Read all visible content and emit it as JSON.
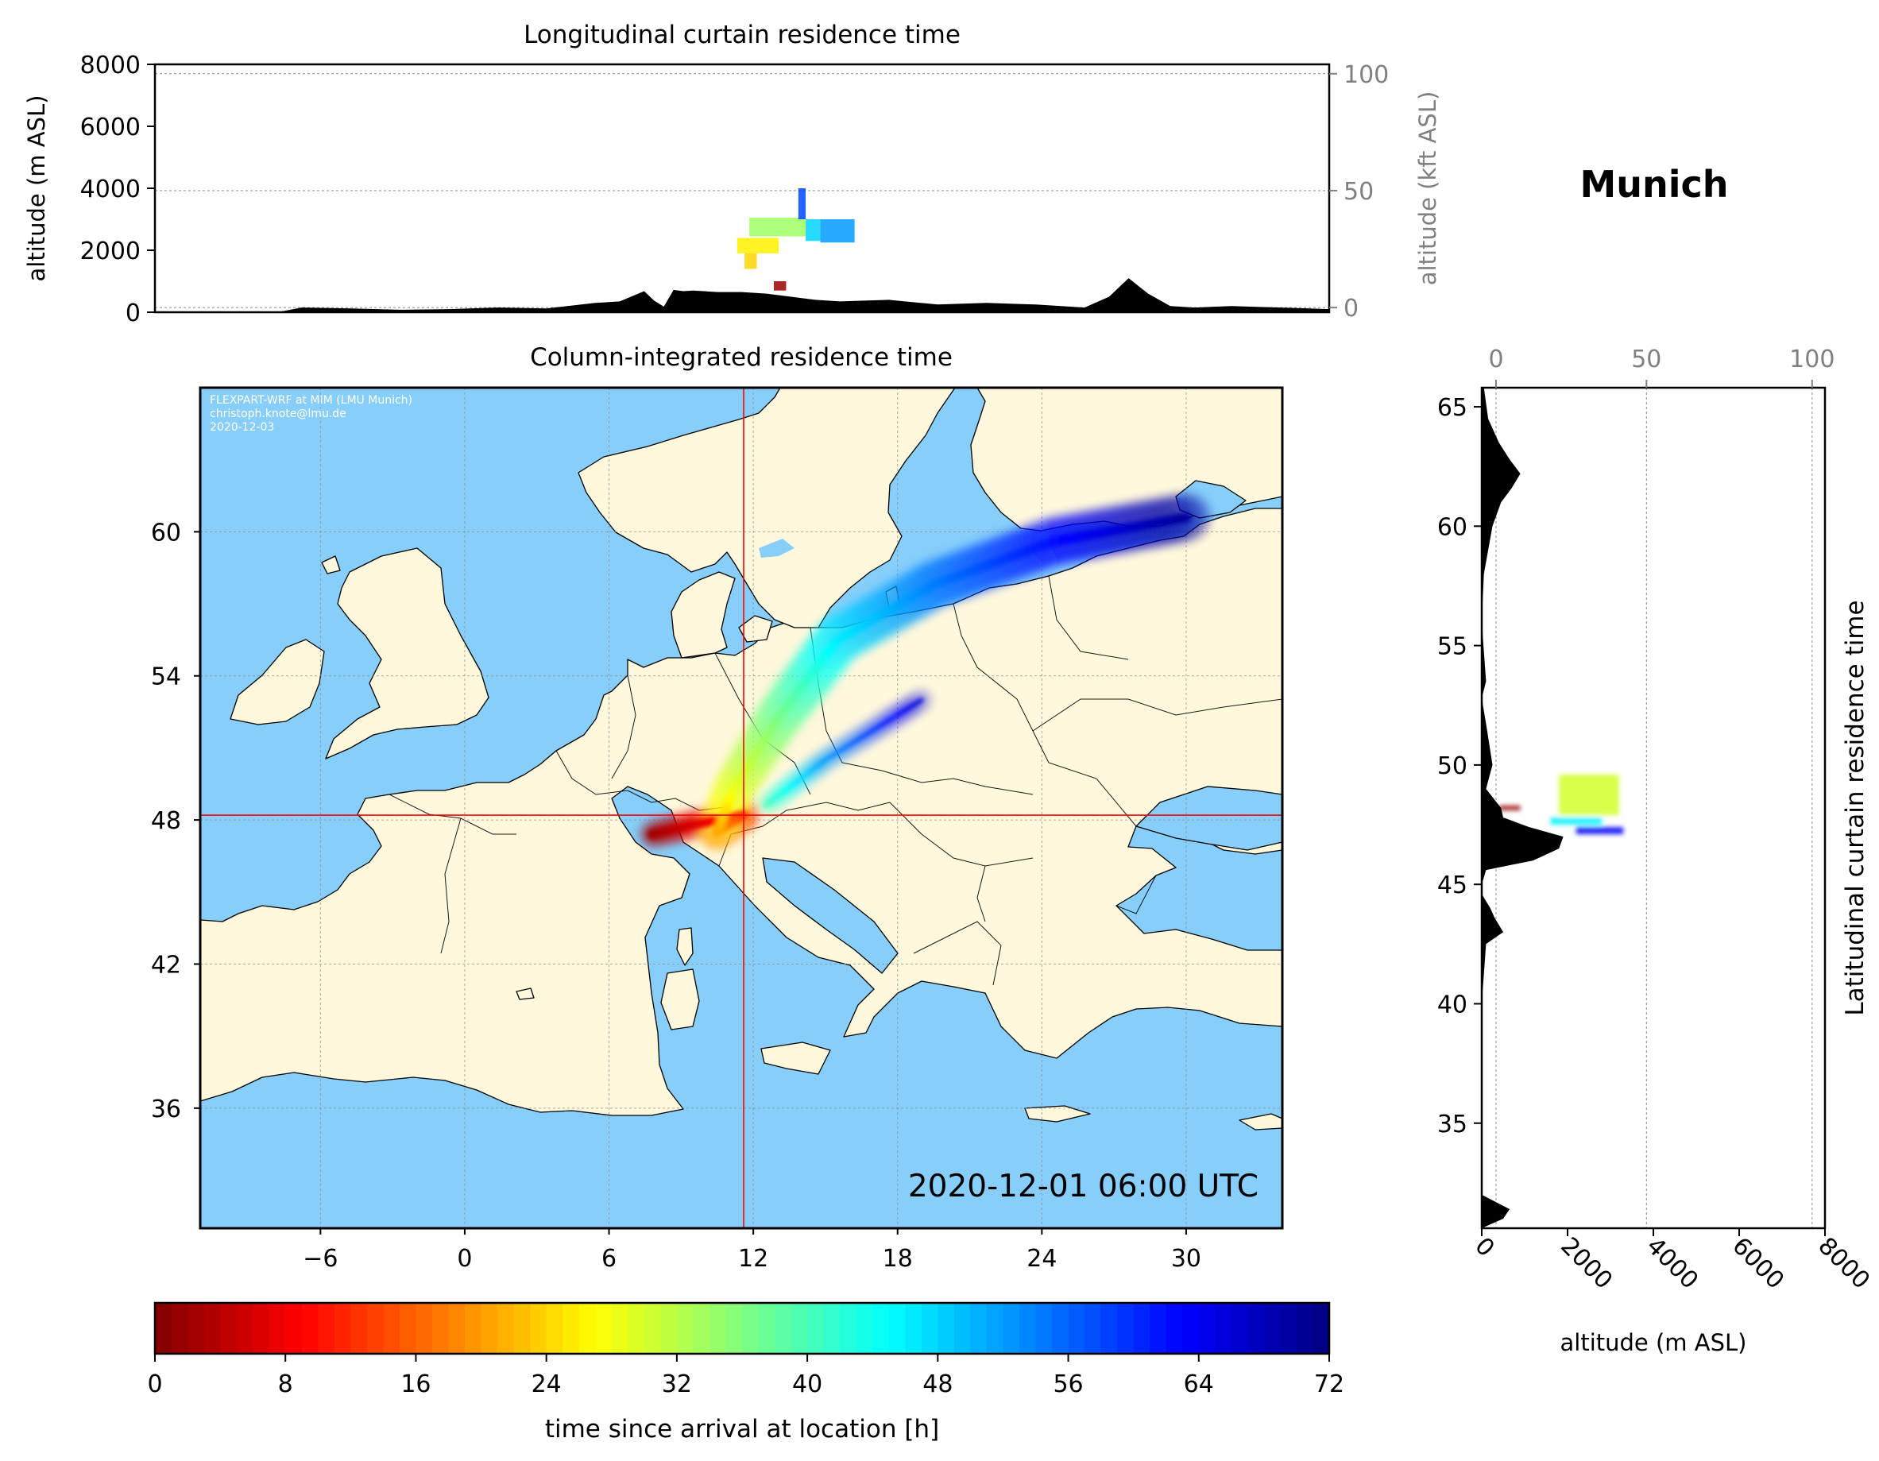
{
  "location_title": "Munich",
  "watermark": [
    "FLEXPART-WRF at MIM (LMU Munich)",
    "christoph.knote@lmu.de",
    "2020-12-03"
  ],
  "timestamp": "2020-12-01 06:00 UTC",
  "colors": {
    "ocean": "#87CEFA",
    "land": "#FFF8DC",
    "terrain": "#000000",
    "marker": "#ff0000",
    "grid": "#888888"
  },
  "chart_data": [
    {
      "type": "area",
      "title": "Longitudinal curtain residence time",
      "ylabel": "altitude (m ASL)",
      "ylabel_right": "altitude (kft ASL)",
      "ylim": [
        0,
        8000
      ],
      "yticks": [
        "0",
        "2000",
        "4000",
        "6000",
        "8000"
      ],
      "right_ylim_kft": [
        -2,
        104
      ],
      "right_yticks": [
        "0",
        "50",
        "100"
      ],
      "xlim": [
        -14,
        34
      ],
      "terrain": {
        "lon": [
          -14,
          -9,
          -8,
          -6,
          -4,
          -2,
          0,
          2,
          4,
          5,
          6,
          6.4,
          6.8,
          7.2,
          7.6,
          8,
          9,
          10,
          11,
          12,
          13,
          14,
          16,
          18,
          20,
          22,
          24,
          25,
          25.8,
          26.6,
          27.5,
          28.5,
          30,
          32,
          34
        ],
        "elev_m": [
          0,
          0,
          150,
          120,
          80,
          100,
          150,
          120,
          300,
          350,
          680,
          380,
          180,
          720,
          680,
          700,
          650,
          650,
          600,
          500,
          400,
          350,
          400,
          250,
          300,
          250,
          150,
          500,
          1100,
          600,
          200,
          150,
          200,
          150,
          100
        ]
      },
      "plume": [
        {
          "lon_from": 10.3,
          "lon_to": 12.6,
          "alt_from": 2450,
          "alt_to": 3050,
          "t_h": 34
        },
        {
          "lon_from": 12.6,
          "lon_to": 13.2,
          "alt_from": 2300,
          "alt_to": 3000,
          "t_h": 48
        },
        {
          "lon_from": 13.2,
          "lon_to": 14.6,
          "alt_from": 2250,
          "alt_to": 3000,
          "t_h": 52
        },
        {
          "lon_from": 9.8,
          "lon_to": 11.5,
          "alt_from": 1900,
          "alt_to": 2400,
          "t_h": 26
        },
        {
          "lon_from": 10.1,
          "lon_to": 10.6,
          "alt_from": 1400,
          "alt_to": 1900,
          "t_h": 24
        },
        {
          "lon_from": 12.3,
          "lon_to": 12.6,
          "alt_from": 3000,
          "alt_to": 4000,
          "t_h": 58
        },
        {
          "lon_from": 11.3,
          "lon_to": 11.8,
          "alt_from": 700,
          "alt_to": 1000,
          "t_h": 2
        }
      ]
    },
    {
      "type": "heatmap",
      "title": "Column-integrated residence time",
      "xlim": [
        -11,
        34
      ],
      "ylim": [
        31,
        66
      ],
      "xticks": [
        -6,
        0,
        6,
        12,
        18,
        24,
        30
      ],
      "xtick_labels": [
        "−6",
        "0",
        "6",
        "12",
        "18",
        "24",
        "30"
      ],
      "yticks": [
        36,
        42,
        48,
        54,
        60
      ],
      "ytick_labels": [
        "36",
        "42",
        "48",
        "54",
        "60"
      ],
      "release_point": {
        "lon": 11.6,
        "lat": 48.2
      },
      "plume_path": [
        {
          "lon": 7.8,
          "lat": 47.4,
          "t_h": 2
        },
        {
          "lon": 9.5,
          "lat": 47.8,
          "t_h": 6
        },
        {
          "lon": 11.6,
          "lat": 48.2,
          "t_h": 12
        },
        {
          "lon": 10.5,
          "lat": 47.5,
          "t_h": 20
        },
        {
          "lon": 11.2,
          "lat": 49.3,
          "t_h": 28
        },
        {
          "lon": 13.0,
          "lat": 52.2,
          "t_h": 36
        },
        {
          "lon": 15.5,
          "lat": 55.5,
          "t_h": 46
        },
        {
          "lon": 19.5,
          "lat": 57.8,
          "t_h": 54
        },
        {
          "lon": 24.5,
          "lat": 59.6,
          "t_h": 62
        },
        {
          "lon": 30.0,
          "lat": 60.6,
          "t_h": 70
        }
      ],
      "secondary_path": [
        {
          "lon": 12.5,
          "lat": 48.6,
          "t_h": 40
        },
        {
          "lon": 15.0,
          "lat": 50.5,
          "t_h": 52
        },
        {
          "lon": 19.0,
          "lat": 53.0,
          "t_h": 66
        }
      ]
    },
    {
      "type": "area",
      "title": "Latitudinal curtain residence time",
      "xlabel": "altitude (m ASL)",
      "xlim": [
        0,
        8000
      ],
      "xticks": [
        "0",
        "2000",
        "4000",
        "6000",
        "8000"
      ],
      "top_ticks_kft": [
        "0",
        "50",
        "100"
      ],
      "ylim": [
        30.6,
        65.8
      ],
      "yticks": [
        "35",
        "40",
        "45",
        "50",
        "55",
        "60",
        "65"
      ],
      "terrain": {
        "lat": [
          30.6,
          31.0,
          31.4,
          32.0,
          40.0,
          42.5,
          43.0,
          43.6,
          44.0,
          44.6,
          45.0,
          45.6,
          46.0,
          46.5,
          47.0,
          47.4,
          47.8,
          48.2,
          49.0,
          50.0,
          51.5,
          52.8,
          53.5,
          56.0,
          58.0,
          60.0,
          61.0,
          61.6,
          62.2,
          62.8,
          63.5,
          64.5,
          65.8
        ],
        "elev_m": [
          0,
          500,
          650,
          0,
          0,
          100,
          500,
          300,
          200,
          0,
          0,
          100,
          1200,
          1800,
          1900,
          1100,
          500,
          450,
          100,
          250,
          120,
          0,
          100,
          0,
          50,
          250,
          450,
          700,
          900,
          650,
          400,
          150,
          50
        ]
      },
      "plume": [
        {
          "alt_from": 1800,
          "alt_to": 3200,
          "lat_from": 47.9,
          "lat_to": 49.6,
          "t_h": 30
        },
        {
          "alt_from": 1600,
          "alt_to": 2800,
          "lat_from": 47.5,
          "lat_to": 47.8,
          "t_h": 46
        },
        {
          "alt_from": 2200,
          "alt_to": 3300,
          "lat_from": 47.1,
          "lat_to": 47.4,
          "t_h": 64
        },
        {
          "alt_from": 400,
          "alt_to": 900,
          "lat_from": 48.1,
          "lat_to": 48.3,
          "t_h": 2
        }
      ]
    },
    {
      "type": "heatmap",
      "xlabel": "time since arrival at location [h]",
      "colormap": "jet_r",
      "range": [
        0,
        72
      ],
      "ticks": [
        "0",
        "8",
        "16",
        "24",
        "32",
        "40",
        "48",
        "56",
        "64",
        "72"
      ]
    }
  ]
}
